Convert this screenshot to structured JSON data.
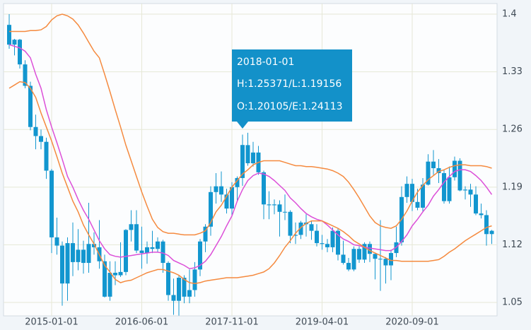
{
  "chart_data": {
    "type": "candlestick",
    "categories": [
      "2014-05-01",
      "2014-06-01",
      "2014-07-01",
      "2014-08-01",
      "2014-09-01",
      "2014-10-01",
      "2014-11-01",
      "2014-12-01",
      "2015-01-01",
      "2015-02-01",
      "2015-03-01",
      "2015-04-01",
      "2015-05-01",
      "2015-06-01",
      "2015-07-01",
      "2015-08-01",
      "2015-09-01",
      "2015-10-01",
      "2015-11-01",
      "2015-12-01",
      "2016-01-01",
      "2016-02-01",
      "2016-03-01",
      "2016-04-01",
      "2016-05-01",
      "2016-06-01",
      "2016-07-01",
      "2016-08-01",
      "2016-09-01",
      "2016-10-01",
      "2016-11-01",
      "2016-12-01",
      "2017-01-01",
      "2017-02-01",
      "2017-03-01",
      "2017-04-01",
      "2017-05-01",
      "2017-06-01",
      "2017-07-01",
      "2017-08-01",
      "2017-09-01",
      "2017-10-01",
      "2017-11-01",
      "2017-12-01",
      "2018-01-01",
      "2018-02-01",
      "2018-03-01",
      "2018-04-01",
      "2018-05-01",
      "2018-06-01",
      "2018-07-01",
      "2018-08-01",
      "2018-09-01",
      "2018-10-01",
      "2018-11-01",
      "2018-12-01",
      "2019-01-01",
      "2019-02-01",
      "2019-03-01",
      "2019-04-01",
      "2019-05-01",
      "2019-06-01",
      "2019-07-01",
      "2019-08-01",
      "2019-09-01",
      "2019-10-01",
      "2019-11-01",
      "2019-12-01",
      "2020-01-01",
      "2020-02-01",
      "2020-03-01",
      "2020-04-01",
      "2020-05-01",
      "2020-06-01",
      "2020-07-01",
      "2020-08-01",
      "2020-09-01",
      "2020-10-01",
      "2020-11-01",
      "2020-12-01",
      "2021-01-01",
      "2021-02-01",
      "2021-03-01",
      "2021-04-01",
      "2021-05-01",
      "2021-06-01",
      "2021-07-01",
      "2021-08-01",
      "2021-09-01",
      "2021-10-01",
      "2021-11-01",
      "2021-12-01"
    ],
    "candles": {
      "color": "#1296cf",
      "open": [
        1.387,
        1.363,
        1.369,
        1.339,
        1.313,
        1.263,
        1.252,
        1.245,
        1.21,
        1.129,
        1.119,
        1.073,
        1.122,
        1.099,
        1.114,
        1.098,
        1.121,
        1.117,
        1.1,
        1.057,
        1.086,
        1.083,
        1.087,
        1.138,
        1.145,
        1.113,
        1.11,
        1.117,
        1.115,
        1.124,
        1.098,
        1.059,
        1.052,
        1.08,
        1.057,
        1.065,
        1.09,
        1.124,
        1.142,
        1.184,
        1.191,
        1.181,
        1.164,
        1.19,
        1.20105,
        1.241,
        1.219,
        1.232,
        1.208,
        1.169,
        1.168,
        1.169,
        1.16,
        1.16,
        1.131,
        1.132,
        1.147,
        1.145,
        1.137,
        1.122,
        1.121,
        1.117,
        1.137,
        1.108,
        1.098,
        1.09,
        1.115,
        1.102,
        1.121,
        1.109,
        1.103,
        1.103,
        1.095,
        1.11,
        1.123,
        1.178,
        1.194,
        1.172,
        1.165,
        1.193,
        1.221,
        1.213,
        1.207,
        1.173,
        1.202,
        1.222,
        1.186,
        1.187,
        1.181,
        1.158,
        1.156,
        1.133
      ],
      "high": [
        1.4,
        1.37,
        1.37,
        1.344,
        1.318,
        1.278,
        1.26,
        1.25,
        1.212,
        1.153,
        1.124,
        1.129,
        1.147,
        1.139,
        1.125,
        1.171,
        1.135,
        1.15,
        1.108,
        1.1,
        1.1,
        1.123,
        1.139,
        1.162,
        1.162,
        1.142,
        1.124,
        1.137,
        1.129,
        1.126,
        1.1,
        1.079,
        1.083,
        1.083,
        1.09,
        1.099,
        1.127,
        1.145,
        1.191,
        1.207,
        1.209,
        1.188,
        1.196,
        1.203,
        1.25371,
        1.256,
        1.245,
        1.24,
        1.21,
        1.185,
        1.175,
        1.174,
        1.181,
        1.162,
        1.147,
        1.149,
        1.157,
        1.149,
        1.145,
        1.132,
        1.127,
        1.141,
        1.14,
        1.125,
        1.104,
        1.118,
        1.118,
        1.123,
        1.124,
        1.109,
        1.15,
        1.105,
        1.114,
        1.142,
        1.191,
        1.203,
        1.2,
        1.188,
        1.201,
        1.23,
        1.235,
        1.224,
        1.211,
        1.215,
        1.227,
        1.225,
        1.191,
        1.194,
        1.191,
        1.17,
        1.162,
        1.138
      ],
      "low": [
        1.358,
        1.35,
        1.334,
        1.31,
        1.259,
        1.236,
        1.236,
        1.2,
        1.11,
        1.108,
        1.046,
        1.052,
        1.082,
        1.089,
        1.085,
        1.086,
        1.108,
        1.091,
        1.056,
        1.052,
        1.071,
        1.081,
        1.083,
        1.124,
        1.11,
        1.091,
        1.097,
        1.11,
        1.111,
        1.086,
        1.052,
        1.035,
        1.034,
        1.049,
        1.049,
        1.057,
        1.082,
        1.111,
        1.131,
        1.17,
        1.172,
        1.158,
        1.155,
        1.172,
        1.19156,
        1.216,
        1.215,
        1.205,
        1.151,
        1.151,
        1.157,
        1.13,
        1.15,
        1.122,
        1.121,
        1.127,
        1.13,
        1.126,
        1.118,
        1.114,
        1.111,
        1.111,
        1.101,
        1.096,
        1.088,
        1.088,
        1.098,
        1.098,
        1.099,
        1.078,
        1.064,
        1.073,
        1.077,
        1.105,
        1.119,
        1.171,
        1.161,
        1.162,
        1.16,
        1.192,
        1.205,
        1.195,
        1.17,
        1.17,
        1.198,
        1.185,
        1.175,
        1.166,
        1.156,
        1.152,
        1.119,
        1.121
      ],
      "close": [
        1.363,
        1.369,
        1.339,
        1.313,
        1.263,
        1.252,
        1.245,
        1.21,
        1.129,
        1.119,
        1.073,
        1.122,
        1.099,
        1.114,
        1.098,
        1.121,
        1.117,
        1.1,
        1.057,
        1.086,
        1.083,
        1.087,
        1.138,
        1.145,
        1.113,
        1.11,
        1.117,
        1.115,
        1.124,
        1.098,
        1.059,
        1.052,
        1.08,
        1.057,
        1.065,
        1.09,
        1.124,
        1.142,
        1.184,
        1.191,
        1.181,
        1.164,
        1.19,
        1.20105,
        1.24113,
        1.219,
        1.232,
        1.208,
        1.169,
        1.168,
        1.169,
        1.16,
        1.16,
        1.131,
        1.132,
        1.147,
        1.145,
        1.137,
        1.122,
        1.121,
        1.117,
        1.137,
        1.108,
        1.098,
        1.09,
        1.115,
        1.102,
        1.121,
        1.109,
        1.103,
        1.103,
        1.095,
        1.11,
        1.123,
        1.178,
        1.194,
        1.172,
        1.165,
        1.193,
        1.221,
        1.213,
        1.207,
        1.173,
        1.202,
        1.222,
        1.186,
        1.187,
        1.181,
        1.158,
        1.156,
        1.133,
        1.137
      ]
    },
    "series": [
      {
        "color": "#f58a3f",
        "values": [
          1.379,
          1.379,
          1.379,
          1.379,
          1.38,
          1.38,
          1.381,
          1.385,
          1.393,
          1.398,
          1.4,
          1.398,
          1.394,
          1.387,
          1.377,
          1.366,
          1.355,
          1.347,
          1.327,
          1.306,
          1.284,
          1.263,
          1.241,
          1.222,
          1.203,
          1.184,
          1.167,
          1.151,
          1.141,
          1.136,
          1.134,
          1.134,
          1.133,
          1.132,
          1.132,
          1.132,
          1.134,
          1.137,
          1.147,
          1.16,
          1.168,
          1.179,
          1.19,
          1.198,
          1.206,
          1.211,
          1.217,
          1.22,
          1.222,
          1.222,
          1.222,
          1.222,
          1.22,
          1.218,
          1.216,
          1.216,
          1.215,
          1.215,
          1.214,
          1.213,
          1.212,
          1.21,
          1.207,
          1.203,
          1.196,
          1.187,
          1.177,
          1.166,
          1.155,
          1.147,
          1.143,
          1.141,
          1.14,
          1.143,
          1.151,
          1.161,
          1.173,
          1.184,
          1.192,
          1.199,
          1.204,
          1.209,
          1.211,
          1.214,
          1.216,
          1.217,
          1.217,
          1.216,
          1.216,
          1.216,
          1.215,
          1.213
        ]
      },
      {
        "color": "#dc4fd8",
        "values": [
          1.363,
          1.361,
          1.359,
          1.355,
          1.347,
          1.327,
          1.31,
          1.284,
          1.263,
          1.244,
          1.224,
          1.203,
          1.19,
          1.175,
          1.162,
          1.151,
          1.138,
          1.125,
          1.115,
          1.108,
          1.106,
          1.105,
          1.106,
          1.107,
          1.108,
          1.109,
          1.11,
          1.111,
          1.111,
          1.11,
          1.107,
          1.101,
          1.098,
          1.095,
          1.091,
          1.092,
          1.095,
          1.1,
          1.108,
          1.119,
          1.13,
          1.143,
          1.155,
          1.173,
          1.187,
          1.198,
          1.204,
          1.207,
          1.206,
          1.203,
          1.198,
          1.192,
          1.186,
          1.177,
          1.171,
          1.164,
          1.158,
          1.154,
          1.151,
          1.149,
          1.144,
          1.138,
          1.132,
          1.127,
          1.124,
          1.12,
          1.119,
          1.117,
          1.116,
          1.115,
          1.114,
          1.113,
          1.113,
          1.117,
          1.124,
          1.132,
          1.143,
          1.151,
          1.16,
          1.168,
          1.179,
          1.187,
          1.196,
          1.203,
          1.209,
          1.211,
          1.211,
          1.209,
          1.204,
          1.198,
          1.19,
          1.181
        ]
      },
      {
        "color": "#f58a3f",
        "values": [
          1.31,
          1.314,
          1.318,
          1.317,
          1.31,
          1.299,
          1.28,
          1.263,
          1.246,
          1.227,
          1.207,
          1.19,
          1.173,
          1.16,
          1.144,
          1.132,
          1.121,
          1.108,
          1.095,
          1.087,
          1.078,
          1.074,
          1.076,
          1.077,
          1.08,
          1.083,
          1.086,
          1.088,
          1.09,
          1.09,
          1.088,
          1.086,
          1.083,
          1.078,
          1.074,
          1.073,
          1.074,
          1.076,
          1.077,
          1.078,
          1.079,
          1.08,
          1.08,
          1.08,
          1.081,
          1.082,
          1.083,
          1.085,
          1.087,
          1.091,
          1.098,
          1.107,
          1.117,
          1.125,
          1.134,
          1.141,
          1.146,
          1.149,
          1.149,
          1.149,
          1.146,
          1.143,
          1.14,
          1.136,
          1.131,
          1.125,
          1.121,
          1.117,
          1.113,
          1.11,
          1.107,
          1.104,
          1.101,
          1.101,
          1.1,
          1.1,
          1.1,
          1.1,
          1.1,
          1.1,
          1.101,
          1.102,
          1.106,
          1.111,
          1.115,
          1.12,
          1.125,
          1.129,
          1.133,
          1.137,
          1.141,
          1.143
        ]
      }
    ],
    "xticks": [
      "2015-01-01",
      "2016-06-01",
      "2017-11-01",
      "2019-04-01",
      "2020-09-01"
    ],
    "ylim": [
      1.0337,
      1.4129
    ],
    "yticks": [
      1.05,
      1.12,
      1.19,
      1.26,
      1.33,
      1.4
    ],
    "grid": true,
    "tooltip": {
      "date": "2018-01-01",
      "lines": [
        "H:1.25371/L:1.19156",
        "O:1.20105/E:1.24113"
      ]
    }
  }
}
